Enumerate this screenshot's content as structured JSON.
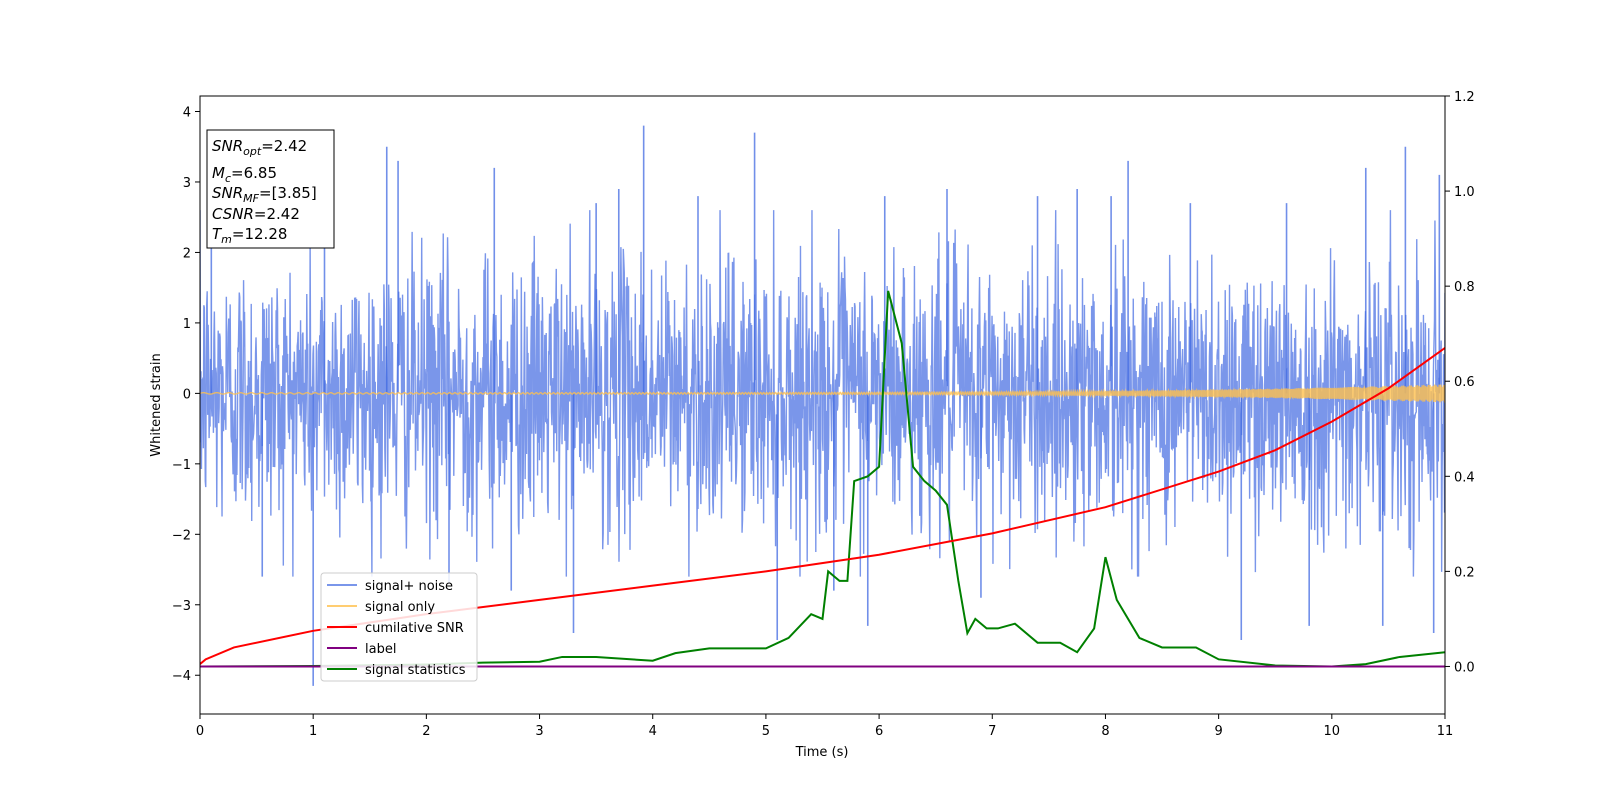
{
  "chart_data": {
    "type": "line",
    "xlabel": "Time (s)",
    "ylabel": "Whitened strain",
    "xlim": [
      0,
      11
    ],
    "ylim_left": [
      -4.55,
      4.22
    ],
    "ylim_right": [
      -0.1,
      1.2
    ],
    "xticks": [
      0,
      1,
      2,
      3,
      4,
      5,
      6,
      7,
      8,
      9,
      10,
      11
    ],
    "yticks_left": [
      -4,
      -3,
      -2,
      -1,
      0,
      1,
      2,
      3,
      4
    ],
    "yticks_right": [
      0.0,
      0.2,
      0.4,
      0.6,
      0.8,
      1.0,
      1.2
    ],
    "legend_position": "lower-left",
    "grid": false,
    "info_box": {
      "snr_opt": {
        "base": "SNR",
        "sub": "opt",
        "value": "=2.42"
      },
      "mc": {
        "base": "M",
        "sub": "c",
        "value": "=6.85"
      },
      "snr_mf": {
        "base": "SNR",
        "sub": "MF",
        "value": "=[3.85]"
      },
      "csnr": {
        "base": "CSNR",
        "value": "=2.42"
      },
      "tm": {
        "base": "T",
        "sub": "m",
        "value": "=12.28"
      }
    },
    "series": [
      {
        "name": "signal+ noise",
        "axis": "left",
        "color": "#4169e1",
        "style": "noise",
        "amplitude_band": [
          -2.0,
          2.0
        ],
        "spikes": [
          [
            0.1,
            2.3
          ],
          [
            0.55,
            -2.6
          ],
          [
            1.0,
            -4.15
          ],
          [
            1.1,
            2.6
          ],
          [
            1.65,
            3.5
          ],
          [
            1.75,
            3.3
          ],
          [
            2.2,
            -2.7
          ],
          [
            2.6,
            3.2
          ],
          [
            2.75,
            -2.8
          ],
          [
            3.3,
            -3.4
          ],
          [
            3.5,
            2.7
          ],
          [
            3.7,
            2.9
          ],
          [
            3.92,
            3.8
          ],
          [
            4.4,
            2.8
          ],
          [
            4.9,
            3.7
          ],
          [
            5.1,
            -3.5
          ],
          [
            5.6,
            -2.8
          ],
          [
            5.9,
            -3.3
          ],
          [
            6.05,
            2.8
          ],
          [
            6.6,
            2.9
          ],
          [
            6.9,
            -2.9
          ],
          [
            7.4,
            2.8
          ],
          [
            7.75,
            2.9
          ],
          [
            8.05,
            2.8
          ],
          [
            8.2,
            3.3
          ],
          [
            8.75,
            2.7
          ],
          [
            9.2,
            -3.5
          ],
          [
            9.6,
            2.7
          ],
          [
            9.8,
            -3.3
          ],
          [
            10.3,
            3.2
          ],
          [
            10.45,
            -3.3
          ],
          [
            10.65,
            3.5
          ],
          [
            10.9,
            -3.4
          ],
          [
            10.95,
            3.1
          ]
        ]
      },
      {
        "name": "signal only",
        "axis": "left",
        "color": "#ffc04d",
        "style": "chirp",
        "amplitude_end": 0.12
      },
      {
        "name": "cumilative SNR",
        "axis": "right",
        "color": "#ff0000",
        "points": [
          [
            0.0,
            0.005
          ],
          [
            0.05,
            0.015
          ],
          [
            0.3,
            0.04
          ],
          [
            1.0,
            0.075
          ],
          [
            2.0,
            0.11
          ],
          [
            3.0,
            0.14
          ],
          [
            4.0,
            0.17
          ],
          [
            5.0,
            0.2
          ],
          [
            6.0,
            0.235
          ],
          [
            7.0,
            0.28
          ],
          [
            8.0,
            0.335
          ],
          [
            9.0,
            0.41
          ],
          [
            9.5,
            0.455
          ],
          [
            10.0,
            0.515
          ],
          [
            10.5,
            0.585
          ],
          [
            11.0,
            0.67
          ]
        ]
      },
      {
        "name": "label",
        "axis": "right",
        "color": "#800080",
        "points": [
          [
            0,
            0.0
          ],
          [
            11,
            0.0
          ]
        ]
      },
      {
        "name": "signal statistics",
        "axis": "right",
        "color": "#008000",
        "points": [
          [
            0.0,
            0.0
          ],
          [
            1.0,
            0.001
          ],
          [
            2.0,
            0.004
          ],
          [
            2.5,
            0.008
          ],
          [
            3.0,
            0.01
          ],
          [
            3.2,
            0.02
          ],
          [
            3.5,
            0.02
          ],
          [
            4.0,
            0.012
          ],
          [
            4.2,
            0.028
          ],
          [
            4.5,
            0.038
          ],
          [
            5.0,
            0.038
          ],
          [
            5.2,
            0.06
          ],
          [
            5.4,
            0.11
          ],
          [
            5.5,
            0.1
          ],
          [
            5.55,
            0.2
          ],
          [
            5.65,
            0.18
          ],
          [
            5.72,
            0.18
          ],
          [
            5.78,
            0.39
          ],
          [
            5.9,
            0.4
          ],
          [
            6.0,
            0.42
          ],
          [
            6.08,
            0.79
          ],
          [
            6.2,
            0.68
          ],
          [
            6.3,
            0.42
          ],
          [
            6.4,
            0.39
          ],
          [
            6.5,
            0.37
          ],
          [
            6.6,
            0.34
          ],
          [
            6.7,
            0.18
          ],
          [
            6.78,
            0.07
          ],
          [
            6.85,
            0.1
          ],
          [
            6.95,
            0.08
          ],
          [
            7.05,
            0.08
          ],
          [
            7.2,
            0.09
          ],
          [
            7.4,
            0.05
          ],
          [
            7.6,
            0.05
          ],
          [
            7.75,
            0.03
          ],
          [
            7.9,
            0.08
          ],
          [
            8.0,
            0.23
          ],
          [
            8.1,
            0.14
          ],
          [
            8.3,
            0.06
          ],
          [
            8.5,
            0.04
          ],
          [
            8.8,
            0.04
          ],
          [
            9.0,
            0.015
          ],
          [
            9.5,
            0.002
          ],
          [
            10.0,
            0.0
          ],
          [
            10.3,
            0.005
          ],
          [
            10.6,
            0.02
          ],
          [
            11.0,
            0.03
          ]
        ]
      }
    ]
  }
}
